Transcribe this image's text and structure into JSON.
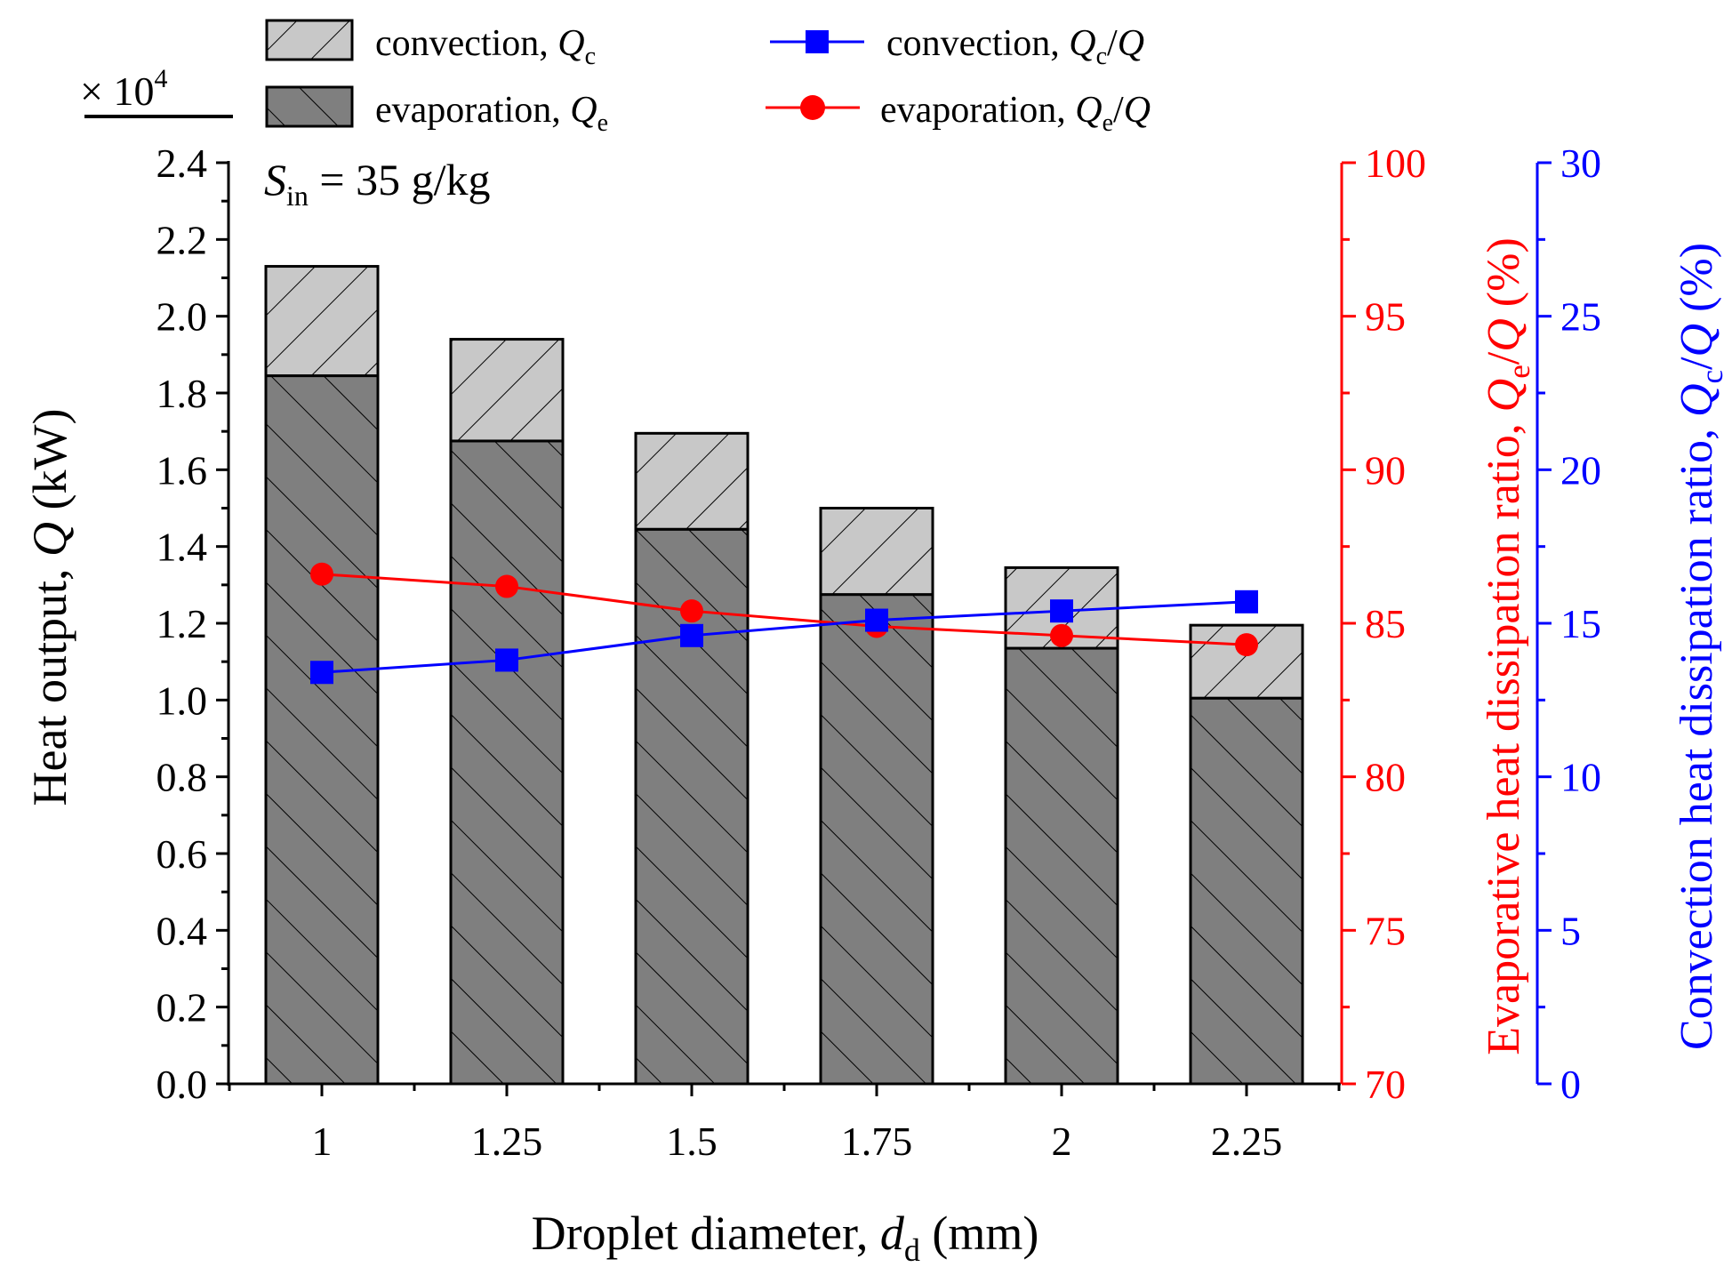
{
  "chart_data": {
    "type": "bar",
    "stacked": true,
    "categories": [
      "1",
      "1.25",
      "1.5",
      "1.75",
      "2",
      "2.25"
    ],
    "xlabel": {
      "main": "Droplet diameter, ",
      "var": "d",
      "sub": "d",
      "unit": " (mm)"
    },
    "ylabel_left": {
      "main": "Heat output, ",
      "var": "Q",
      "unit": " (kW)"
    },
    "ylabel_red": {
      "main": "Evaporative heat dissipation ratio, ",
      "var": "Q",
      "sub": "e",
      "slash": "/",
      "var2": "Q",
      "unit": " (%)"
    },
    "ylabel_blue": {
      "main": "Convection heat dissipation ratio, ",
      "var": "Q",
      "sub": "c",
      "slash": "/",
      "var2": "Q",
      "unit": " (%)"
    },
    "multiplier": {
      "prefix": "× 10",
      "exp": "4"
    },
    "annotation": {
      "var": "S",
      "sub": "in",
      "text": " = 35 g/kg"
    },
    "ylim_left": [
      0,
      2.4
    ],
    "yticks_left": [
      "0.0",
      "0.2",
      "0.4",
      "0.6",
      "0.8",
      "1.0",
      "1.2",
      "1.4",
      "1.6",
      "1.8",
      "2.0",
      "2.2",
      "2.4"
    ],
    "ylim_red": [
      70,
      100
    ],
    "yticks_red": [
      "70",
      "75",
      "80",
      "85",
      "90",
      "95",
      "100"
    ],
    "ylim_blue": [
      0,
      30
    ],
    "yticks_blue": [
      "0",
      "5",
      "10",
      "15",
      "20",
      "25",
      "30"
    ],
    "series": [
      {
        "name": "evaporation",
        "kind": "bar",
        "axis": "left",
        "values": [
          1.845,
          1.675,
          1.445,
          1.275,
          1.135,
          1.005
        ]
      },
      {
        "name": "convection",
        "kind": "bar",
        "axis": "left",
        "values": [
          0.285,
          0.265,
          0.25,
          0.225,
          0.21,
          0.19
        ]
      },
      {
        "name": "evaporation ratio",
        "kind": "line",
        "axis": "red",
        "values": [
          86.6,
          86.2,
          85.4,
          84.9,
          84.6,
          84.3
        ]
      },
      {
        "name": "convection ratio",
        "kind": "line",
        "axis": "blue",
        "values": [
          13.4,
          13.8,
          14.6,
          15.1,
          15.4,
          15.7
        ]
      }
    ],
    "legend": [
      {
        "text": "convection, ",
        "var": "Q",
        "sub": "c"
      },
      {
        "text": "evaporation, ",
        "var": "Q",
        "sub": "e"
      },
      {
        "text": "convection,  ",
        "var": "Q",
        "sub": "c",
        "slash": "/",
        "var2": "Q"
      },
      {
        "text": "evaporation,  ",
        "var": "Q",
        "sub": "e",
        "slash": "/",
        "var2": "Q"
      }
    ],
    "colors": {
      "axis": "#000000",
      "evap_fill": "#7f7f7f",
      "conv_fill": "#c8c8c8",
      "red": "#ff0000",
      "blue": "#0000ff"
    }
  }
}
